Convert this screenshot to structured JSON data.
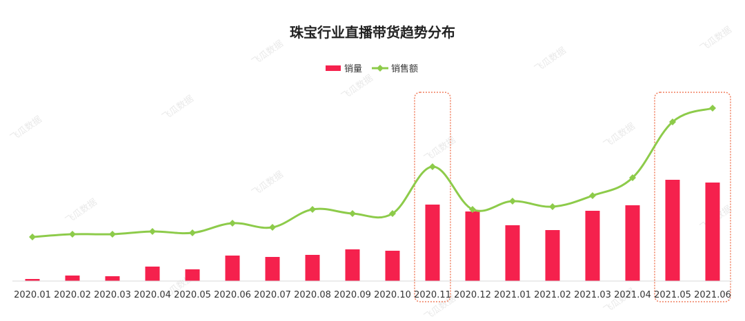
{
  "chart_data": {
    "type": "bar",
    "title": "珠宝行业直播带货趋势分布",
    "categories": [
      "2020.01",
      "2020.02",
      "2020.03",
      "2020.04",
      "2020.05",
      "2020.06",
      "2020.07",
      "2020.08",
      "2020.09",
      "2020.10",
      "2020.11",
      "2020.12",
      "2021.01",
      "2021.02",
      "2021.03",
      "2021.04",
      "2021.05",
      "2021.06"
    ],
    "series": [
      {
        "name": "销量",
        "type": "bar",
        "color": "#f5214d",
        "values": [
          3,
          8,
          7,
          21,
          17,
          37,
          35,
          38,
          46,
          44,
          111,
          101,
          81,
          74,
          102,
          110,
          147,
          143
        ]
      },
      {
        "name": "销售额",
        "type": "line",
        "color": "#8dcb4a",
        "marker": "diamond",
        "values": [
          64,
          68,
          68,
          72,
          70,
          84,
          78,
          104,
          98,
          98,
          166,
          104,
          116,
          108,
          124,
          150,
          231,
          251
        ]
      }
    ],
    "highlighted_categories": [
      "2020.11",
      "2021.05",
      "2021.06"
    ],
    "highlight_color": "#f07e5e",
    "ylim": [
      0,
      280
    ],
    "grid": false,
    "y_axis_visible": false,
    "legend_position": "top-center",
    "watermark": "飞瓜数据"
  }
}
